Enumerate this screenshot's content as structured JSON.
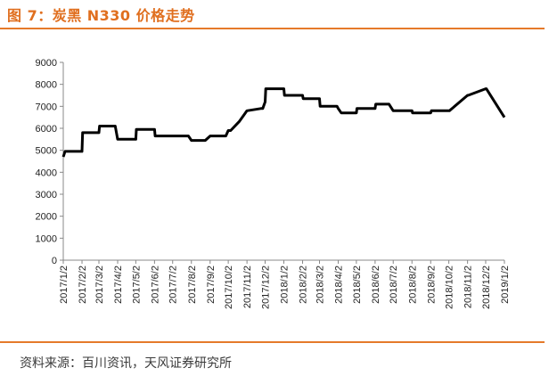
{
  "title": "图 7：炭黑 N330 价格走势",
  "source": "资料来源：百川资讯，天风证券研究所",
  "colors": {
    "accent": "#e57a2a",
    "title": "#e06f1f",
    "line": "#000000"
  },
  "chart_data": {
    "type": "line",
    "title": "",
    "xlabel": "",
    "ylabel": "",
    "ylim": [
      0,
      9000
    ],
    "yticks": [
      0,
      1000,
      2000,
      3000,
      4000,
      5000,
      6000,
      7000,
      8000,
      9000
    ],
    "xticks": [
      "2017/1/2",
      "2017/2/2",
      "2017/3/2",
      "2017/4/2",
      "2017/5/2",
      "2017/6/2",
      "2017/7/2",
      "2017/8/2",
      "2017/9/2",
      "2017/10/2",
      "2017/11/2",
      "2017/12/2",
      "2018/1/2",
      "2018/2/2",
      "2018/3/2",
      "2018/4/2",
      "2018/5/2",
      "2018/6/2",
      "2018/7/2",
      "2018/8/2",
      "2018/9/2",
      "2018/10/2",
      "2018/11/2",
      "2018/12/2",
      "2019/1/2"
    ],
    "grid": false,
    "legend": "none",
    "series": [
      {
        "x": [
          "2017/1/2",
          "2017/1/5",
          "2017/2/2",
          "2017/2/3",
          "2017/3/2",
          "2017/3/3",
          "2017/3/29",
          "2017/4/2",
          "2017/5/2",
          "2017/5/3",
          "2017/6/2",
          "2017/6/3",
          "2017/7/28",
          "2017/8/2",
          "2017/8/25",
          "2017/9/2",
          "2017/9/28",
          "2017/10/2",
          "2017/10/6",
          "2017/10/20",
          "2017/11/2",
          "2017/11/25",
          "2017/11/28",
          "2017/12/2",
          "2017/12/3",
          "2018/1/2",
          "2018/1/3",
          "2018/2/2",
          "2018/2/3",
          "2018/3/2",
          "2018/3/3",
          "2018/3/31",
          "2018/4/2",
          "2018/4/7",
          "2018/4/10",
          "2018/5/2",
          "2018/5/3",
          "2018/6/2",
          "2018/6/3",
          "2018/6/25",
          "2018/7/2",
          "2018/7/3",
          "2018/8/2",
          "2018/8/3",
          "2018/9/2",
          "2018/9/3",
          "2018/10/2",
          "2018/10/3",
          "2018/11/2",
          "2018/11/3",
          "2018/12/2",
          "2018/12/3",
          "2019/1/2"
        ],
        "y": [
          4700,
          4950,
          4950,
          5800,
          5800,
          6100,
          6100,
          5500,
          5500,
          5950,
          5950,
          5650,
          5650,
          5450,
          5450,
          5650,
          5650,
          5900,
          5900,
          6300,
          6800,
          6900,
          6900,
          7200,
          7800,
          7800,
          7500,
          7500,
          7350,
          7350,
          7000,
          7000,
          6900,
          6700,
          6700,
          6700,
          6900,
          6900,
          7100,
          7100,
          6800,
          6800,
          6800,
          6700,
          6700,
          6800,
          6800,
          6800,
          7500,
          7500,
          7800,
          7800,
          6500
        ]
      }
    ]
  }
}
